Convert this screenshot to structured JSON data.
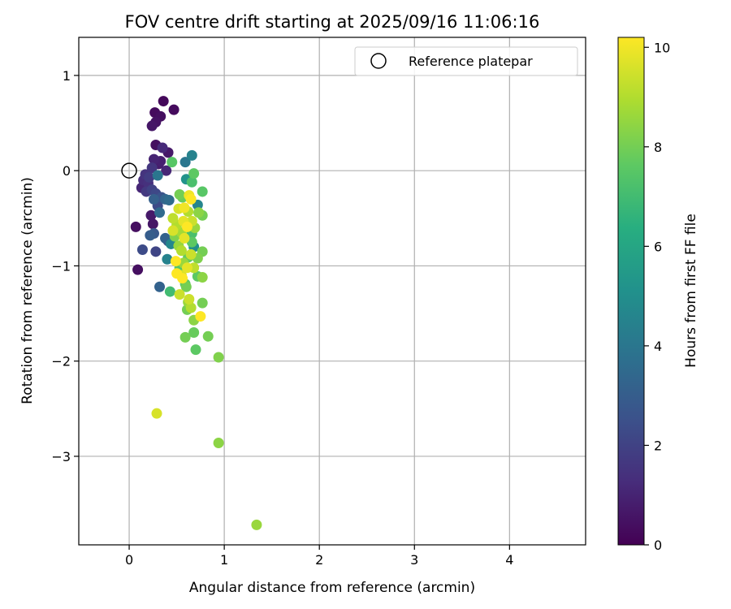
{
  "chart_data": {
    "type": "scatter",
    "title": "FOV centre drift starting at 2025/09/16 11:06:16",
    "xlabel": "Angular distance from reference (arcmin)",
    "ylabel": "Rotation from reference (arcmin)",
    "xlim": [
      -0.53,
      4.8
    ],
    "ylim": [
      -3.93,
      1.4
    ],
    "xticks": [
      0,
      1,
      2,
      3,
      4
    ],
    "yticks": [
      1,
      0,
      -1,
      -2,
      -3
    ],
    "grid": true,
    "legend": {
      "position": "top-right",
      "entries": [
        {
          "label": "Reference platepar",
          "marker": "open-circle"
        }
      ]
    },
    "reference_point": {
      "x": 0,
      "y": 0
    },
    "colorbar": {
      "label": "Hours from first FF file",
      "min": 0,
      "max": 10.2,
      "ticks": [
        0,
        2,
        4,
        6,
        8,
        10
      ],
      "colormap": "viridis"
    },
    "points": [
      {
        "x": 0.36,
        "y": 0.73,
        "c": 0.2
      },
      {
        "x": 0.47,
        "y": 0.64,
        "c": 0.3
      },
      {
        "x": 0.27,
        "y": 0.61,
        "c": 0.3
      },
      {
        "x": 0.33,
        "y": 0.57,
        "c": 0.4
      },
      {
        "x": 0.28,
        "y": 0.51,
        "c": 0.5
      },
      {
        "x": 0.24,
        "y": 0.47,
        "c": 0.6
      },
      {
        "x": 0.28,
        "y": 0.27,
        "c": 0.4
      },
      {
        "x": 0.35,
        "y": 0.24,
        "c": 1.2
      },
      {
        "x": 0.41,
        "y": 0.19,
        "c": 0.7
      },
      {
        "x": 0.26,
        "y": 0.12,
        "c": 1.0
      },
      {
        "x": 0.33,
        "y": 0.1,
        "c": 0.9
      },
      {
        "x": 0.45,
        "y": 0.09,
        "c": 7.5
      },
      {
        "x": 0.31,
        "y": 0.07,
        "c": 0.8
      },
      {
        "x": 0.24,
        "y": 0.03,
        "c": 1.6
      },
      {
        "x": 0.39,
        "y": 0.0,
        "c": 1.1
      },
      {
        "x": 0.17,
        "y": -0.04,
        "c": 1.5
      },
      {
        "x": 0.21,
        "y": -0.07,
        "c": 1.8
      },
      {
        "x": 0.3,
        "y": -0.05,
        "c": 4.0
      },
      {
        "x": 0.15,
        "y": -0.1,
        "c": 1.3
      },
      {
        "x": 0.2,
        "y": -0.13,
        "c": 1.4
      },
      {
        "x": 0.13,
        "y": -0.18,
        "c": 1.1
      },
      {
        "x": 0.24,
        "y": -0.2,
        "c": 2.0
      },
      {
        "x": 0.18,
        "y": -0.22,
        "c": 1.7
      },
      {
        "x": 0.28,
        "y": -0.24,
        "c": 2.2
      },
      {
        "x": 0.34,
        "y": -0.28,
        "c": 2.6
      },
      {
        "x": 0.26,
        "y": -0.3,
        "c": 3.1
      },
      {
        "x": 0.38,
        "y": -0.3,
        "c": 3.3
      },
      {
        "x": 0.42,
        "y": -0.31,
        "c": 3.6
      },
      {
        "x": 0.3,
        "y": -0.37,
        "c": 2.3
      },
      {
        "x": 0.23,
        "y": -0.47,
        "c": 0.7
      },
      {
        "x": 0.25,
        "y": -0.56,
        "c": 0.6
      },
      {
        "x": 0.07,
        "y": -0.59,
        "c": 0.4
      },
      {
        "x": 0.32,
        "y": -0.44,
        "c": 3.5
      },
      {
        "x": 0.26,
        "y": -0.66,
        "c": 2.8
      },
      {
        "x": 0.22,
        "y": -0.68,
        "c": 3.0
      },
      {
        "x": 0.38,
        "y": -0.71,
        "c": 3.2
      },
      {
        "x": 0.41,
        "y": -0.74,
        "c": 2.7
      },
      {
        "x": 0.44,
        "y": -0.77,
        "c": 4.7
      },
      {
        "x": 0.14,
        "y": -0.83,
        "c": 2.3
      },
      {
        "x": 0.28,
        "y": -0.85,
        "c": 2.1
      },
      {
        "x": 0.4,
        "y": -0.93,
        "c": 4.5
      },
      {
        "x": 0.09,
        "y": -1.04,
        "c": 0.4
      },
      {
        "x": 0.32,
        "y": -1.22,
        "c": 3.2
      },
      {
        "x": 0.43,
        "y": -1.27,
        "c": 7.0
      },
      {
        "x": 0.66,
        "y": 0.16,
        "c": 4.5
      },
      {
        "x": 0.59,
        "y": 0.09,
        "c": 4.0
      },
      {
        "x": 0.68,
        "y": -0.03,
        "c": 7.6
      },
      {
        "x": 0.6,
        "y": -0.09,
        "c": 5.2
      },
      {
        "x": 0.66,
        "y": -0.12,
        "c": 7.2
      },
      {
        "x": 0.53,
        "y": -0.25,
        "c": 8.0
      },
      {
        "x": 0.56,
        "y": -0.28,
        "c": 7.8
      },
      {
        "x": 0.63,
        "y": -0.26,
        "c": 10.0
      },
      {
        "x": 0.77,
        "y": -0.22,
        "c": 7.5
      },
      {
        "x": 0.65,
        "y": -0.3,
        "c": 10.2
      },
      {
        "x": 0.72,
        "y": -0.36,
        "c": 4.6
      },
      {
        "x": 0.58,
        "y": -0.39,
        "c": 10.0
      },
      {
        "x": 0.52,
        "y": -0.4,
        "c": 9.6
      },
      {
        "x": 0.62,
        "y": -0.43,
        "c": 9.0
      },
      {
        "x": 0.73,
        "y": -0.44,
        "c": 8.4
      },
      {
        "x": 0.77,
        "y": -0.47,
        "c": 8.0
      },
      {
        "x": 0.46,
        "y": -0.5,
        "c": 9.2
      },
      {
        "x": 0.57,
        "y": -0.53,
        "c": 9.8
      },
      {
        "x": 0.66,
        "y": -0.53,
        "c": 9.4
      },
      {
        "x": 0.5,
        "y": -0.57,
        "c": 9.0
      },
      {
        "x": 0.61,
        "y": -0.59,
        "c": 10.2
      },
      {
        "x": 0.69,
        "y": -0.6,
        "c": 8.6
      },
      {
        "x": 0.46,
        "y": -0.63,
        "c": 9.6
      },
      {
        "x": 0.55,
        "y": -0.65,
        "c": 8.8
      },
      {
        "x": 0.66,
        "y": -0.66,
        "c": 7.2
      },
      {
        "x": 0.48,
        "y": -0.69,
        "c": 8.2
      },
      {
        "x": 0.58,
        "y": -0.71,
        "c": 9.8
      },
      {
        "x": 0.66,
        "y": -0.75,
        "c": 7.6
      },
      {
        "x": 0.52,
        "y": -0.79,
        "c": 8.6
      },
      {
        "x": 0.68,
        "y": -0.8,
        "c": 5.0
      },
      {
        "x": 0.55,
        "y": -0.84,
        "c": 9.0
      },
      {
        "x": 0.77,
        "y": -0.85,
        "c": 8.0
      },
      {
        "x": 0.65,
        "y": -0.88,
        "c": 9.4
      },
      {
        "x": 0.62,
        "y": -0.91,
        "c": 7.8
      },
      {
        "x": 0.72,
        "y": -0.92,
        "c": 8.2
      },
      {
        "x": 0.49,
        "y": -0.95,
        "c": 10.2
      },
      {
        "x": 0.57,
        "y": -0.97,
        "c": 8.6
      },
      {
        "x": 0.53,
        "y": -1.02,
        "c": 7.4
      },
      {
        "x": 0.61,
        "y": -1.02,
        "c": 9.8
      },
      {
        "x": 0.68,
        "y": -1.02,
        "c": 9.2
      },
      {
        "x": 0.5,
        "y": -1.08,
        "c": 10.2
      },
      {
        "x": 0.55,
        "y": -1.1,
        "c": 9.6
      },
      {
        "x": 0.72,
        "y": -1.11,
        "c": 7.6
      },
      {
        "x": 0.77,
        "y": -1.12,
        "c": 8.4
      },
      {
        "x": 0.56,
        "y": -1.13,
        "c": 10.2
      },
      {
        "x": 0.59,
        "y": -1.19,
        "c": 7.6
      },
      {
        "x": 0.6,
        "y": -1.22,
        "c": 8.0
      },
      {
        "x": 0.53,
        "y": -1.3,
        "c": 9.4
      },
      {
        "x": 0.63,
        "y": -1.35,
        "c": 9.4
      },
      {
        "x": 0.62,
        "y": -1.38,
        "c": 8.6
      },
      {
        "x": 0.77,
        "y": -1.39,
        "c": 8.0
      },
      {
        "x": 0.61,
        "y": -1.46,
        "c": 8.0
      },
      {
        "x": 0.65,
        "y": -1.44,
        "c": 9.0
      },
      {
        "x": 0.75,
        "y": -1.53,
        "c": 10.2
      },
      {
        "x": 0.68,
        "y": -1.57,
        "c": 8.4
      },
      {
        "x": 0.68,
        "y": -1.7,
        "c": 7.8
      },
      {
        "x": 0.59,
        "y": -1.75,
        "c": 8.0
      },
      {
        "x": 0.83,
        "y": -1.74,
        "c": 8.0
      },
      {
        "x": 0.7,
        "y": -1.88,
        "c": 7.6
      },
      {
        "x": 0.94,
        "y": -1.96,
        "c": 8.2
      },
      {
        "x": 0.29,
        "y": -2.55,
        "c": 9.6
      },
      {
        "x": 0.94,
        "y": -2.86,
        "c": 8.4
      },
      {
        "x": 1.34,
        "y": -3.72,
        "c": 8.6
      }
    ]
  }
}
